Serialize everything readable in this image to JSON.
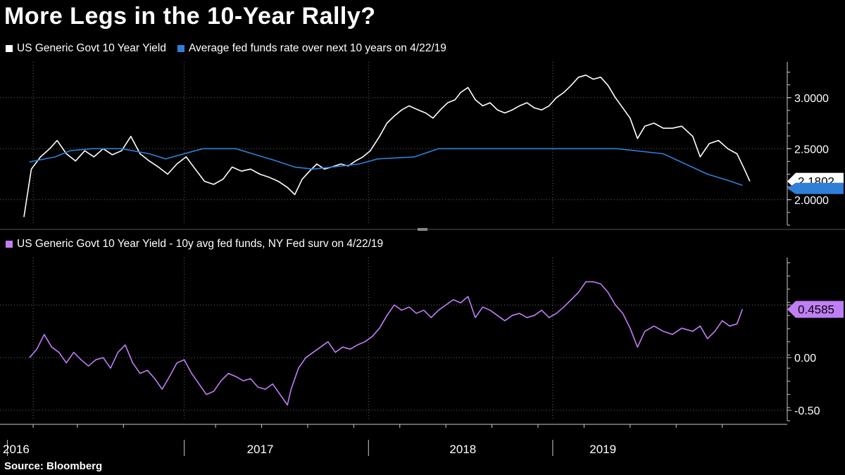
{
  "title": "More Legs in the 10-Year Rally?",
  "source": "Source: Bloomberg",
  "colors": {
    "yield": "#ffffff",
    "fedfunds": "#2f7fd8",
    "spread": "#c07ef5",
    "grid": "#666666",
    "axis": "#cccccc"
  },
  "chart_data": [
    {
      "type": "line",
      "panel": "top",
      "x_axis": {
        "labels": [
          "2016",
          "2017",
          "2018",
          "2019"
        ],
        "start": "2016-02",
        "end": "2019-06"
      },
      "ylim": [
        1.75,
        3.35
      ],
      "yticks": [
        "2.0000",
        "2.5000",
        "3.0000"
      ],
      "ytick_values": [
        2.0,
        2.5,
        3.0
      ],
      "series": [
        {
          "name": "US Generic Govt 10 Year Yield",
          "color": "#ffffff",
          "last_value": "2.1802",
          "points": [
            [
              2016.13,
              1.83
            ],
            [
              2016.17,
              2.3
            ],
            [
              2016.22,
              2.42
            ],
            [
              2016.27,
              2.5
            ],
            [
              2016.31,
              2.58
            ],
            [
              2016.36,
              2.45
            ],
            [
              2016.41,
              2.38
            ],
            [
              2016.46,
              2.48
            ],
            [
              2016.51,
              2.42
            ],
            [
              2016.56,
              2.5
            ],
            [
              2016.61,
              2.44
            ],
            [
              2016.66,
              2.48
            ],
            [
              2016.71,
              2.62
            ],
            [
              2016.76,
              2.45
            ],
            [
              2016.81,
              2.38
            ],
            [
              2016.86,
              2.32
            ],
            [
              2016.91,
              2.25
            ],
            [
              2016.96,
              2.35
            ],
            [
              2017.01,
              2.42
            ],
            [
              2017.06,
              2.3
            ],
            [
              2017.11,
              2.18
            ],
            [
              2017.16,
              2.15
            ],
            [
              2017.21,
              2.2
            ],
            [
              2017.26,
              2.32
            ],
            [
              2017.31,
              2.28
            ],
            [
              2017.36,
              2.3
            ],
            [
              2017.41,
              2.25
            ],
            [
              2017.46,
              2.22
            ],
            [
              2017.51,
              2.18
            ],
            [
              2017.56,
              2.12
            ],
            [
              2017.6,
              2.05
            ],
            [
              2017.64,
              2.2
            ],
            [
              2017.68,
              2.28
            ],
            [
              2017.72,
              2.35
            ],
            [
              2017.76,
              2.3
            ],
            [
              2017.8,
              2.32
            ],
            [
              2017.85,
              2.35
            ],
            [
              2017.89,
              2.33
            ],
            [
              2017.93,
              2.38
            ],
            [
              2017.97,
              2.42
            ],
            [
              2018.01,
              2.48
            ],
            [
              2018.06,
              2.62
            ],
            [
              2018.1,
              2.75
            ],
            [
              2018.14,
              2.82
            ],
            [
              2018.18,
              2.88
            ],
            [
              2018.22,
              2.92
            ],
            [
              2018.27,
              2.88
            ],
            [
              2018.31,
              2.85
            ],
            [
              2018.35,
              2.8
            ],
            [
              2018.39,
              2.88
            ],
            [
              2018.43,
              2.95
            ],
            [
              2018.47,
              2.98
            ],
            [
              2018.5,
              3.05
            ],
            [
              2018.54,
              3.1
            ],
            [
              2018.58,
              2.98
            ],
            [
              2018.62,
              2.92
            ],
            [
              2018.66,
              2.95
            ],
            [
              2018.7,
              2.88
            ],
            [
              2018.74,
              2.85
            ],
            [
              2018.78,
              2.88
            ],
            [
              2018.82,
              2.92
            ],
            [
              2018.86,
              2.95
            ],
            [
              2018.9,
              2.9
            ],
            [
              2018.94,
              2.88
            ],
            [
              2018.98,
              2.92
            ],
            [
              2019.02,
              3.0
            ],
            [
              2019.06,
              3.05
            ],
            [
              2019.1,
              3.12
            ],
            [
              2019.14,
              3.2
            ],
            [
              2019.18,
              3.22
            ],
            [
              2019.22,
              3.18
            ],
            [
              2019.26,
              3.2
            ],
            [
              2019.3,
              3.12
            ],
            [
              2019.34,
              3.0
            ],
            [
              2019.38,
              2.9
            ],
            [
              2019.42,
              2.8
            ],
            [
              2019.46,
              2.6
            ],
            [
              2019.5,
              2.72
            ],
            [
              2019.55,
              2.75
            ],
            [
              2019.6,
              2.7
            ],
            [
              2019.65,
              2.7
            ],
            [
              2019.7,
              2.72
            ],
            [
              2019.76,
              2.62
            ],
            [
              2019.8,
              2.42
            ],
            [
              2019.85,
              2.55
            ],
            [
              2019.9,
              2.58
            ],
            [
              2019.95,
              2.5
            ],
            [
              2020.0,
              2.45
            ],
            [
              2020.04,
              2.3
            ],
            [
              2020.07,
              2.18
            ]
          ]
        },
        {
          "name": "Average fed funds rate over next 10 years on 4/22/19",
          "color": "#2f7fd8",
          "points": [
            [
              2016.16,
              2.37
            ],
            [
              2016.3,
              2.42
            ],
            [
              2016.38,
              2.48
            ],
            [
              2016.5,
              2.5
            ],
            [
              2016.66,
              2.5
            ],
            [
              2016.81,
              2.45
            ],
            [
              2016.9,
              2.4
            ],
            [
              2017.0,
              2.45
            ],
            [
              2017.1,
              2.5
            ],
            [
              2017.28,
              2.5
            ],
            [
              2017.5,
              2.38
            ],
            [
              2017.6,
              2.32
            ],
            [
              2017.7,
              2.3
            ],
            [
              2017.8,
              2.32
            ],
            [
              2017.95,
              2.35
            ],
            [
              2018.05,
              2.4
            ],
            [
              2018.25,
              2.42
            ],
            [
              2018.38,
              2.5
            ],
            [
              2018.6,
              2.5
            ],
            [
              2018.9,
              2.5
            ],
            [
              2019.1,
              2.5
            ],
            [
              2019.35,
              2.5
            ],
            [
              2019.6,
              2.45
            ],
            [
              2019.72,
              2.35
            ],
            [
              2019.84,
              2.25
            ],
            [
              2019.95,
              2.19
            ],
            [
              2020.03,
              2.14
            ]
          ]
        }
      ]
    },
    {
      "type": "line",
      "panel": "bottom",
      "x_axis": {
        "labels": [
          "2016",
          "2017",
          "2018",
          "2019"
        ],
        "start": "2016-02",
        "end": "2019-06"
      },
      "ylim": [
        -0.6,
        0.95
      ],
      "yticks": [
        "-0.50",
        "0.00",
        "0.50"
      ],
      "ytick_values": [
        -0.5,
        0.0,
        0.5
      ],
      "series": [
        {
          "name": "US Generic Govt 10 Year Yield - 10y avg fed funds, NY Fed surv on 4/22/19",
          "color": "#c07ef5",
          "last_value": "0.4585",
          "points": [
            [
              2016.16,
              0.0
            ],
            [
              2016.2,
              0.08
            ],
            [
              2016.24,
              0.22
            ],
            [
              2016.28,
              0.1
            ],
            [
              2016.32,
              0.05
            ],
            [
              2016.36,
              -0.05
            ],
            [
              2016.4,
              0.05
            ],
            [
              2016.44,
              -0.02
            ],
            [
              2016.48,
              -0.08
            ],
            [
              2016.52,
              -0.02
            ],
            [
              2016.56,
              0.0
            ],
            [
              2016.6,
              -0.1
            ],
            [
              2016.64,
              0.05
            ],
            [
              2016.68,
              0.12
            ],
            [
              2016.72,
              -0.05
            ],
            [
              2016.76,
              -0.15
            ],
            [
              2016.8,
              -0.12
            ],
            [
              2016.84,
              -0.2
            ],
            [
              2016.88,
              -0.3
            ],
            [
              2016.92,
              -0.18
            ],
            [
              2016.96,
              -0.05
            ],
            [
              2017.0,
              -0.02
            ],
            [
              2017.04,
              -0.15
            ],
            [
              2017.08,
              -0.25
            ],
            [
              2017.12,
              -0.35
            ],
            [
              2017.16,
              -0.32
            ],
            [
              2017.2,
              -0.22
            ],
            [
              2017.24,
              -0.15
            ],
            [
              2017.28,
              -0.18
            ],
            [
              2017.32,
              -0.22
            ],
            [
              2017.36,
              -0.2
            ],
            [
              2017.4,
              -0.28
            ],
            [
              2017.44,
              -0.3
            ],
            [
              2017.48,
              -0.25
            ],
            [
              2017.52,
              -0.35
            ],
            [
              2017.56,
              -0.45
            ],
            [
              2017.58,
              -0.3
            ],
            [
              2017.62,
              -0.1
            ],
            [
              2017.66,
              0.0
            ],
            [
              2017.7,
              0.05
            ],
            [
              2017.74,
              0.1
            ],
            [
              2017.78,
              0.15
            ],
            [
              2017.82,
              0.05
            ],
            [
              2017.86,
              0.1
            ],
            [
              2017.9,
              0.08
            ],
            [
              2017.94,
              0.12
            ],
            [
              2017.98,
              0.15
            ],
            [
              2018.02,
              0.2
            ],
            [
              2018.06,
              0.28
            ],
            [
              2018.1,
              0.4
            ],
            [
              2018.14,
              0.5
            ],
            [
              2018.18,
              0.45
            ],
            [
              2018.22,
              0.48
            ],
            [
              2018.26,
              0.42
            ],
            [
              2018.3,
              0.45
            ],
            [
              2018.34,
              0.38
            ],
            [
              2018.38,
              0.45
            ],
            [
              2018.42,
              0.5
            ],
            [
              2018.46,
              0.55
            ],
            [
              2018.5,
              0.52
            ],
            [
              2018.54,
              0.58
            ],
            [
              2018.58,
              0.38
            ],
            [
              2018.62,
              0.48
            ],
            [
              2018.66,
              0.45
            ],
            [
              2018.7,
              0.4
            ],
            [
              2018.74,
              0.35
            ],
            [
              2018.78,
              0.4
            ],
            [
              2018.82,
              0.42
            ],
            [
              2018.86,
              0.38
            ],
            [
              2018.9,
              0.4
            ],
            [
              2018.94,
              0.45
            ],
            [
              2018.98,
              0.38
            ],
            [
              2019.02,
              0.42
            ],
            [
              2019.06,
              0.48
            ],
            [
              2019.1,
              0.55
            ],
            [
              2019.14,
              0.62
            ],
            [
              2019.18,
              0.72
            ],
            [
              2019.22,
              0.72
            ],
            [
              2019.26,
              0.7
            ],
            [
              2019.3,
              0.62
            ],
            [
              2019.34,
              0.5
            ],
            [
              2019.38,
              0.42
            ],
            [
              2019.42,
              0.28
            ],
            [
              2019.46,
              0.1
            ],
            [
              2019.5,
              0.25
            ],
            [
              2019.55,
              0.3
            ],
            [
              2019.6,
              0.25
            ],
            [
              2019.65,
              0.22
            ],
            [
              2019.7,
              0.28
            ],
            [
              2019.76,
              0.25
            ],
            [
              2019.8,
              0.3
            ],
            [
              2019.84,
              0.18
            ],
            [
              2019.88,
              0.25
            ],
            [
              2019.92,
              0.35
            ],
            [
              2019.96,
              0.3
            ],
            [
              2020.0,
              0.32
            ],
            [
              2020.03,
              0.46
            ]
          ]
        }
      ]
    }
  ]
}
